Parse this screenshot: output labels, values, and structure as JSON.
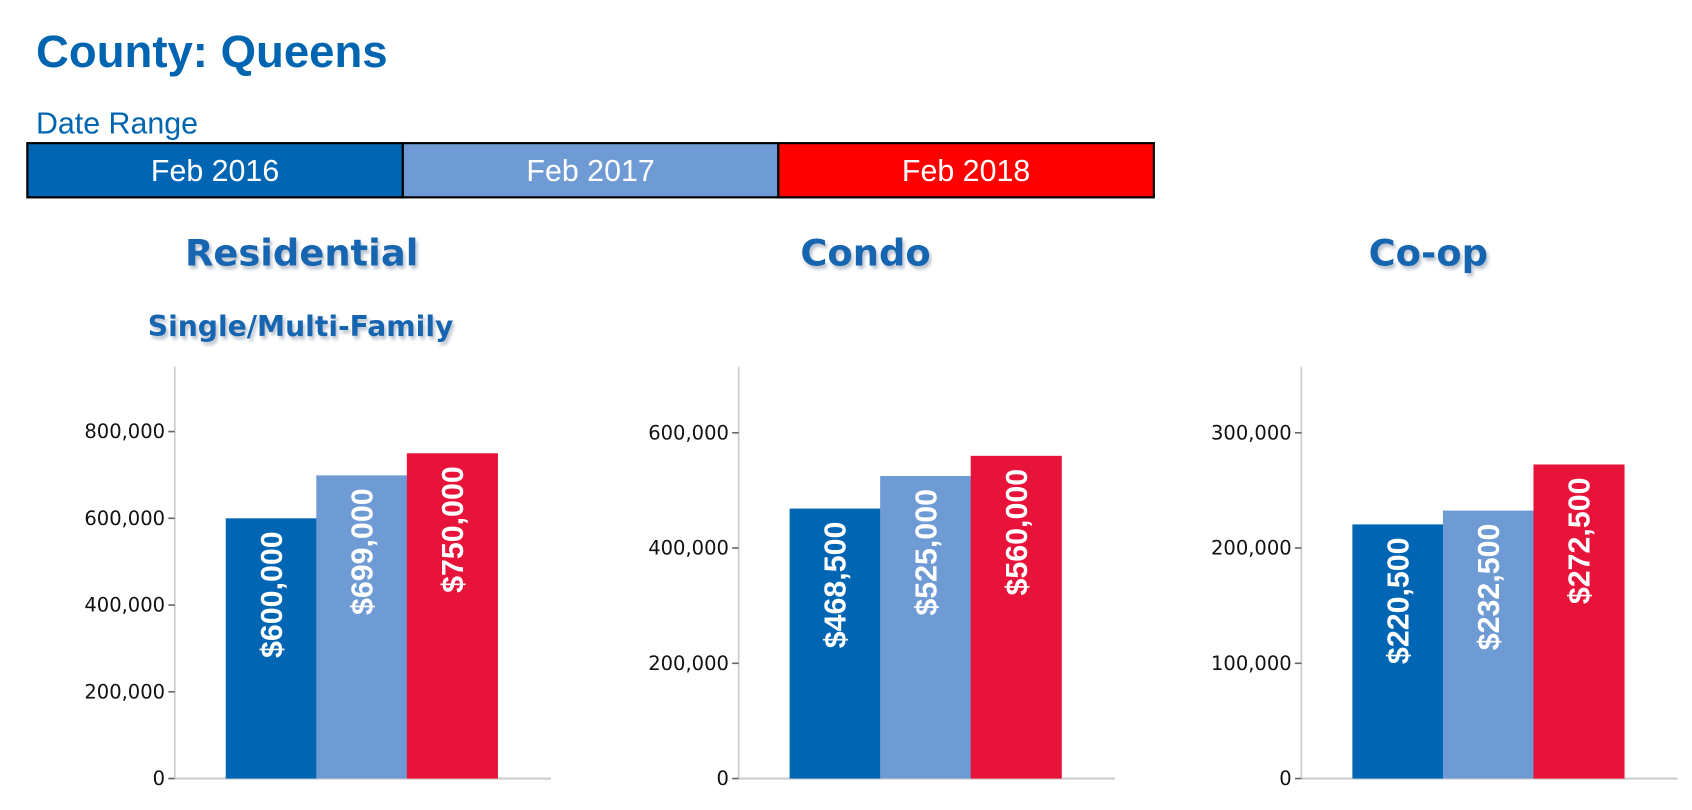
{
  "header": {
    "title": "County: Queens",
    "date_range_label": "Date Range"
  },
  "legend": [
    {
      "label": "Feb 2016",
      "color": "#0066B3"
    },
    {
      "label": "Feb 2017",
      "color": "#6F9BD5"
    },
    {
      "label": "Feb 2018",
      "color": "#FF0000"
    }
  ],
  "chart_data": [
    {
      "type": "bar",
      "title": "Residential",
      "subtitle": "Single/Multi-Family",
      "categories": [
        "Feb 2016",
        "Feb 2017",
        "Feb 2018"
      ],
      "values": [
        600000,
        699000,
        750000
      ],
      "data_labels": [
        "$600,000",
        "$699,000",
        "$750,000"
      ],
      "colors": [
        "#0066B3",
        "#6F9BD5",
        "#E8133A"
      ],
      "yticks": [
        0,
        200000,
        400000,
        600000,
        800000
      ],
      "ytick_labels": [
        "0",
        "200,000",
        "400,000",
        "600,000",
        "800,000"
      ],
      "ylim": [
        0,
        950000
      ],
      "grid": false
    },
    {
      "type": "bar",
      "title": "Condo",
      "subtitle": "",
      "categories": [
        "Feb 2016",
        "Feb 2017",
        "Feb 2018"
      ],
      "values": [
        468500,
        525000,
        560000
      ],
      "data_labels": [
        "$468,500",
        "$525,000",
        "$560,000"
      ],
      "colors": [
        "#0066B3",
        "#6F9BD5",
        "#E8133A"
      ],
      "yticks": [
        0,
        200000,
        400000,
        600000
      ],
      "ytick_labels": [
        "0",
        "200,000",
        "400,000",
        "600,000"
      ],
      "ylim": [
        0,
        715000
      ],
      "grid": false
    },
    {
      "type": "bar",
      "title": "Co-op",
      "subtitle": "",
      "categories": [
        "Feb 2016",
        "Feb 2017",
        "Feb 2018"
      ],
      "values": [
        220500,
        232500,
        272500
      ],
      "data_labels": [
        "$220,500",
        "$232,500",
        "$272,500"
      ],
      "colors": [
        "#0066B3",
        "#6F9BD5",
        "#E8133A"
      ],
      "yticks": [
        0,
        100000,
        200000,
        300000
      ],
      "ytick_labels": [
        "0",
        "100,000",
        "200,000",
        "300,000"
      ],
      "ylim": [
        0,
        357500
      ],
      "grid": false
    }
  ]
}
